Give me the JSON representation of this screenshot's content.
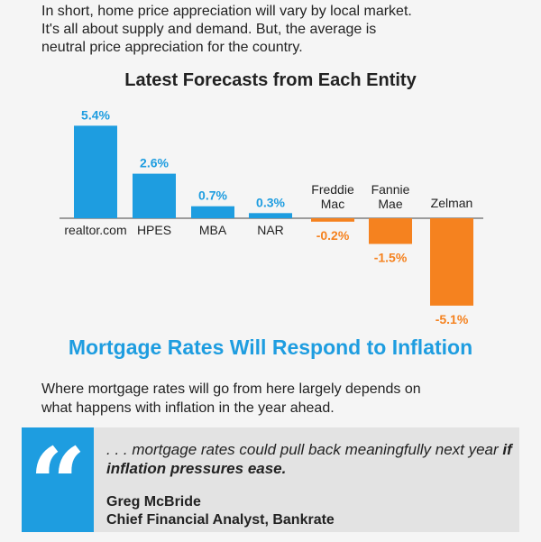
{
  "intro": {
    "line1": "In short, home price appreciation will vary by local market.",
    "line2": "It's all about supply and demand. But, the average is",
    "line3": "neutral price appreciation for the country."
  },
  "chart_data": {
    "type": "bar",
    "title": "Latest Forecasts from Each Entity",
    "categories": [
      "realtor.com",
      "HPES",
      "MBA",
      "NAR",
      "Freddie Mac",
      "Fannie Mae",
      "Zelman"
    ],
    "category_lines": [
      [
        "realtor.com"
      ],
      [
        "HPES"
      ],
      [
        "MBA"
      ],
      [
        "NAR"
      ],
      [
        "Freddie",
        "Mac"
      ],
      [
        "Fannie",
        "Mae"
      ],
      [
        "Zelman"
      ]
    ],
    "values": [
      5.4,
      2.6,
      0.7,
      0.3,
      -0.2,
      -1.5,
      -5.1
    ],
    "value_labels": [
      "5.4%",
      "2.6%",
      "0.7%",
      "0.3%",
      "-0.2%",
      "-1.5%",
      "-5.1%"
    ],
    "ylim": [
      -5.1,
      5.4
    ],
    "grid": false,
    "colors": {
      "positive": "#1e9de0",
      "negative": "#f5821f"
    }
  },
  "section": {
    "title": "Mortgage Rates Will Respond to Inflation",
    "line1": "Where mortgage rates will go from here largely depends on",
    "line2": "what happens with inflation in the year ahead."
  },
  "quote": {
    "mark": "“",
    "text_plain": ". . . mortgage rates could pull back meaningfully next year",
    "text_bold": "if inflation pressures ease.",
    "author_name": "Greg McBride",
    "author_title": "Chief Financial Analyst, Bankrate"
  }
}
